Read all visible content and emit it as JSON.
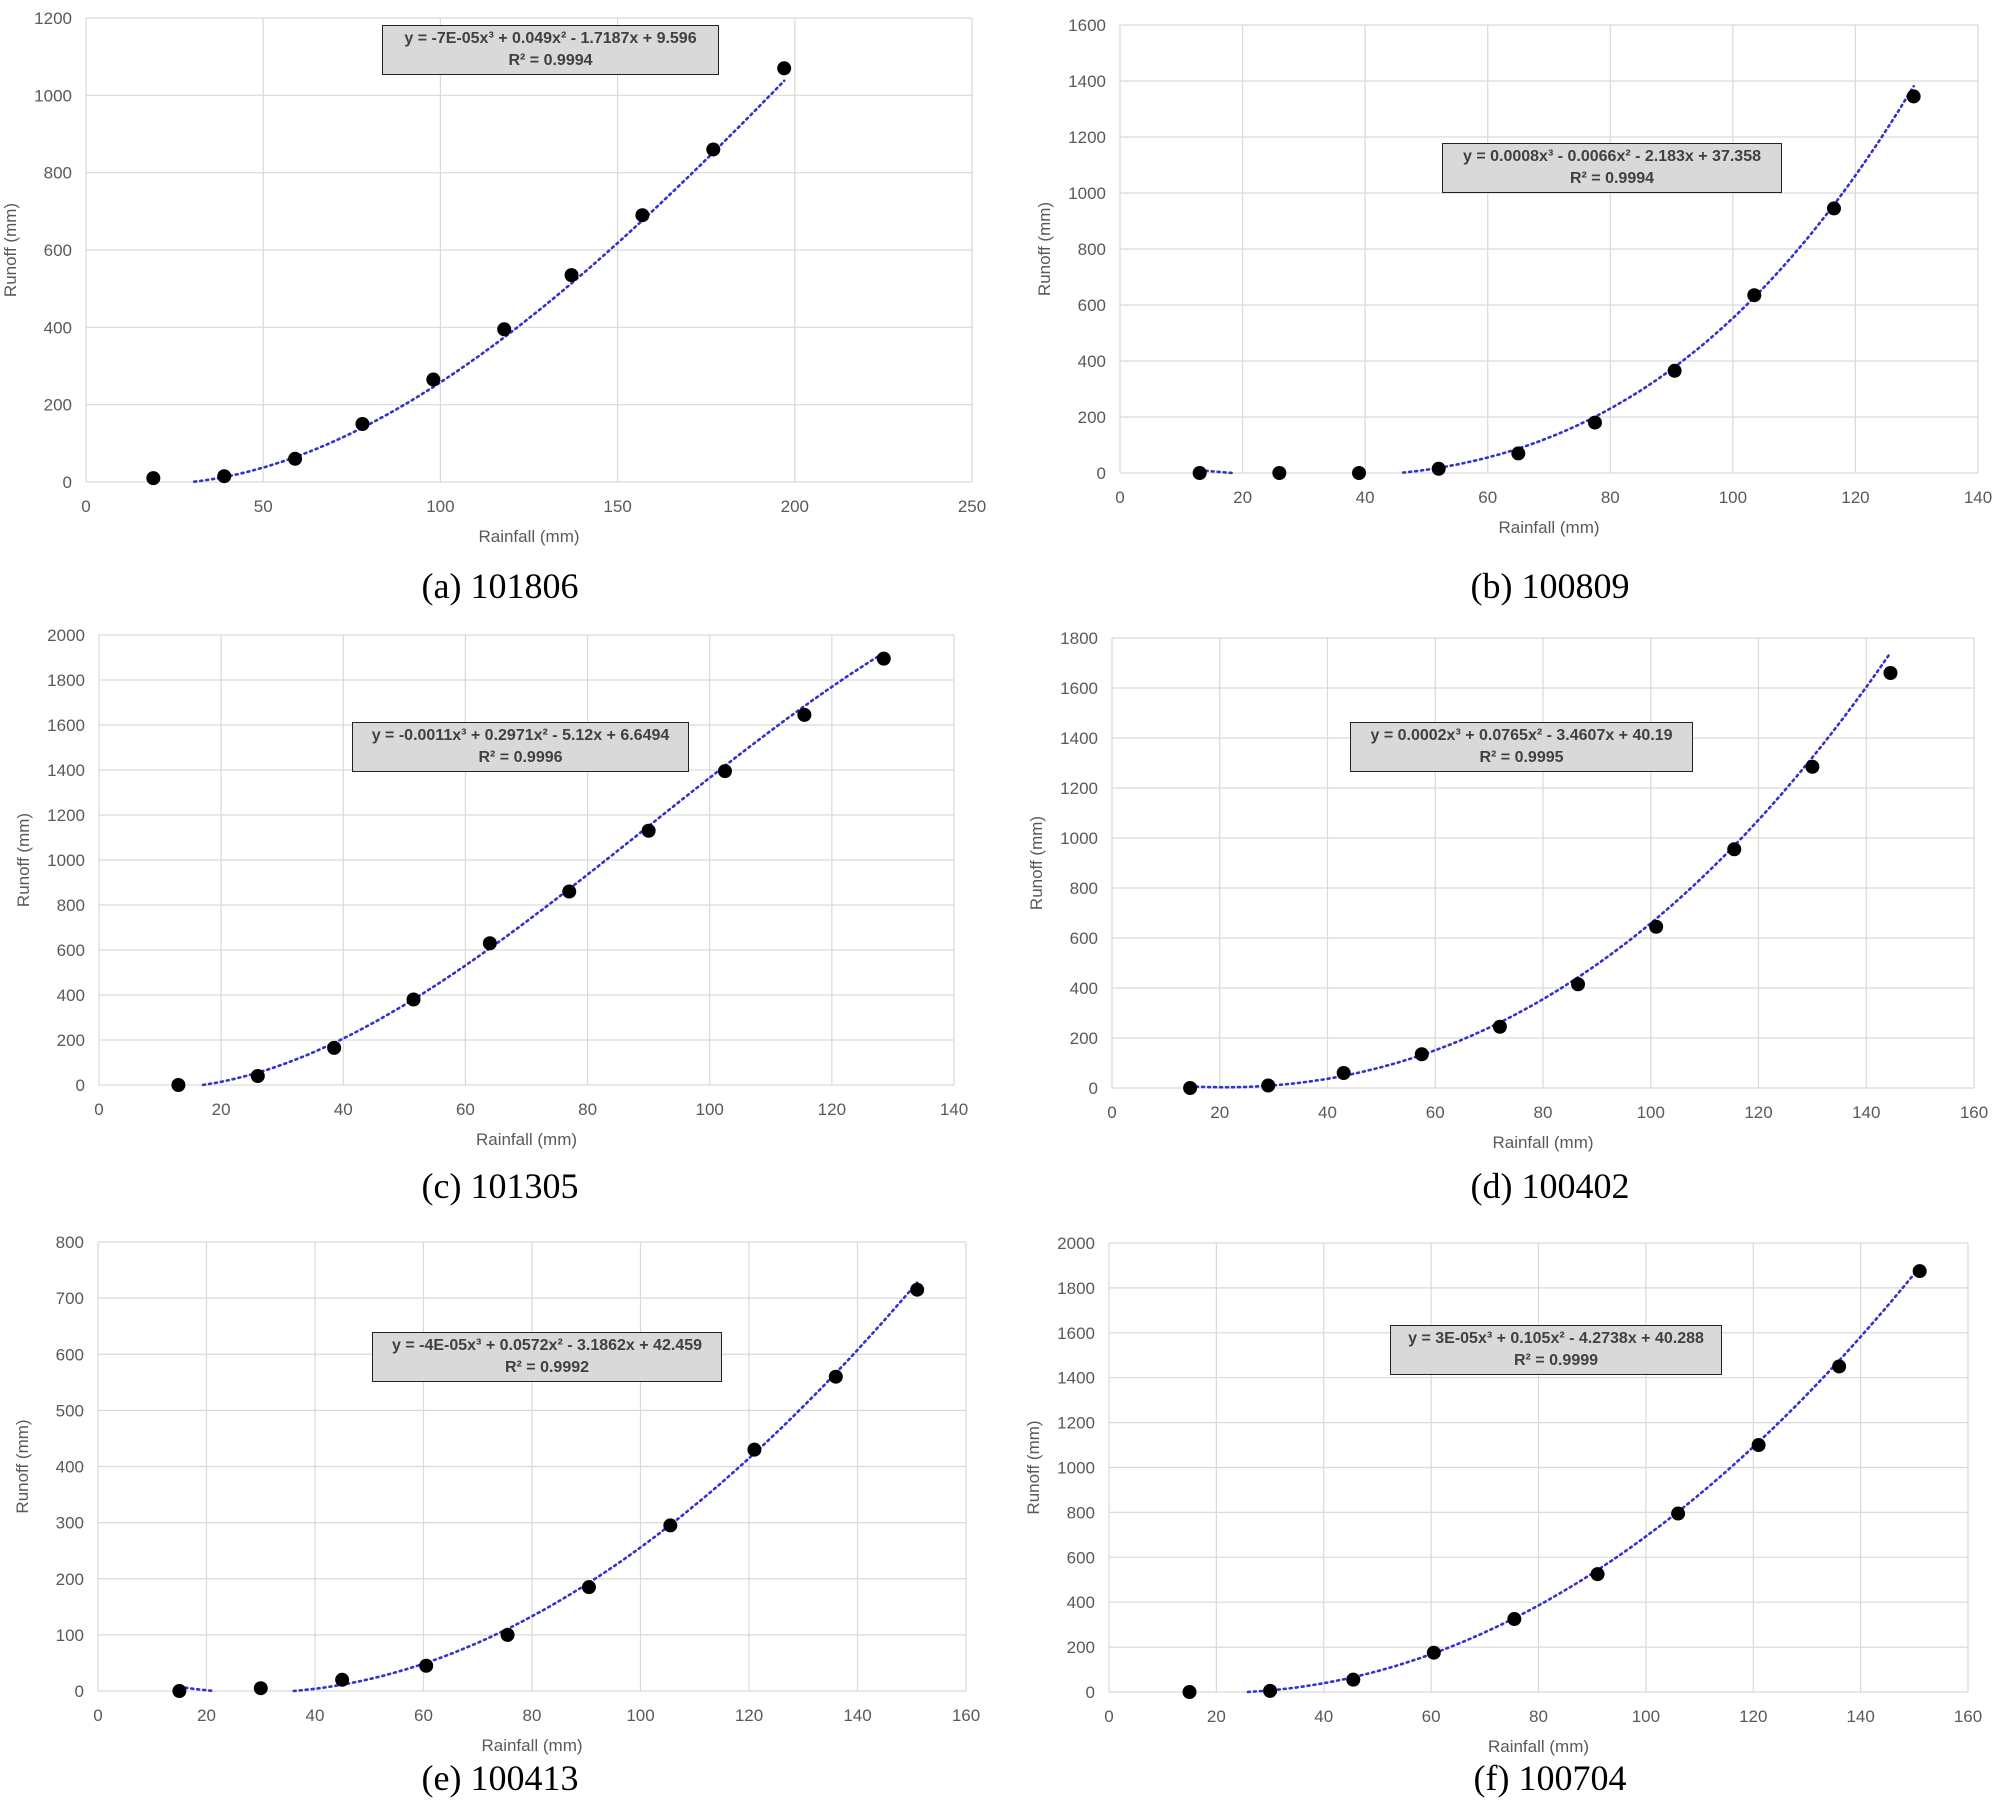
{
  "chart_data": [
    {
      "type": "scatter",
      "caption": "(a) 101806",
      "xlabel": "Rainfall (mm)",
      "ylabel": "Runoff (mm)",
      "xlim": [
        0,
        250
      ],
      "xstep": 50,
      "ylim": [
        0,
        1200
      ],
      "ystep": 200,
      "trendline": {
        "type": "polynomial",
        "order": 3,
        "coefficients": [
          -7e-05,
          0.049,
          -1.7187,
          9.596
        ],
        "color": "#3333cc"
      },
      "equation": "y = -7E-05x³ + 0.049x² - 1.7187x + 9.596",
      "r2": "R² = 0.9994",
      "x": [
        19,
        39,
        59,
        78,
        98,
        118,
        137,
        157,
        177,
        197
      ],
      "y": [
        10,
        15,
        60,
        150,
        265,
        395,
        535,
        690,
        860,
        1070
      ]
    },
    {
      "type": "scatter",
      "caption": "(b) 100809",
      "xlabel": "Rainfall (mm)",
      "ylabel": "Runoff (mm)",
      "xlim": [
        0,
        140
      ],
      "xstep": 20,
      "ylim": [
        0,
        1600
      ],
      "ystep": 200,
      "trendline": {
        "type": "polynomial",
        "order": 3,
        "coefficients": [
          0.0008,
          -0.0066,
          -2.183,
          37.358
        ],
        "color": "#3333cc"
      },
      "equation": "y = 0.0008x³ - 0.0066x² - 2.183x + 37.358",
      "r2": "R² = 0.9994",
      "x": [
        13,
        26,
        39,
        52,
        65,
        77.5,
        90.5,
        103.5,
        116.5,
        129.5
      ],
      "y": [
        0,
        0,
        0,
        15,
        70,
        180,
        365,
        635,
        945,
        1345
      ]
    },
    {
      "type": "scatter",
      "caption": "(c) 101305",
      "xlabel": "Rainfall (mm)",
      "ylabel": "Runoff (mm)",
      "xlim": [
        0,
        140
      ],
      "xstep": 20,
      "ylim": [
        0,
        2000
      ],
      "ystep": 200,
      "trendline": {
        "type": "polynomial",
        "order": 3,
        "coefficients": [
          -0.0011,
          0.2971,
          -5.12,
          6.6494
        ],
        "color": "#3333cc"
      },
      "equation": "y = -0.0011x³ + 0.2971x² - 5.12x + 6.6494",
      "r2": "R² = 0.9996",
      "x": [
        13,
        26,
        38.5,
        51.5,
        64,
        77,
        90,
        102.5,
        115.5,
        128.5
      ],
      "y": [
        0,
        40,
        165,
        380,
        630,
        860,
        1130,
        1395,
        1645,
        1895
      ]
    },
    {
      "type": "scatter",
      "caption": "(d) 100402",
      "xlabel": "Rainfall (mm)",
      "ylabel": "Runoff (mm)",
      "xlim": [
        0,
        160
      ],
      "xstep": 20,
      "ylim": [
        0,
        1800
      ],
      "ystep": 200,
      "trendline": {
        "type": "polynomial",
        "order": 3,
        "coefficients": [
          0.0002,
          0.0765,
          -3.4607,
          40.19
        ],
        "color": "#3333cc"
      },
      "equation": "y = 0.0002x³ + 0.0765x² - 3.4607x + 40.19",
      "r2": "R² = 0.9995",
      "x": [
        14.5,
        29,
        43,
        57.5,
        72,
        86.5,
        101,
        115.5,
        130,
        144.5
      ],
      "y": [
        0,
        10,
        60,
        135,
        245,
        415,
        645,
        955,
        1285,
        1660
      ]
    },
    {
      "type": "scatter",
      "caption": "(e) 100413",
      "xlabel": "Rainfall (mm)",
      "ylabel": "Runoff (mm)",
      "xlim": [
        0,
        160
      ],
      "xstep": 20,
      "ylim": [
        0,
        800
      ],
      "ystep": 100,
      "trendline": {
        "type": "polynomial",
        "order": 3,
        "coefficients": [
          -4e-05,
          0.0572,
          -3.1862,
          42.459
        ],
        "color": "#3333cc"
      },
      "equation": "y = -4E-05x³ + 0.0572x² - 3.1862x + 42.459",
      "r2": "R² = 0.9992",
      "x": [
        15,
        30,
        45,
        60.5,
        75.5,
        90.5,
        105.5,
        121,
        136,
        151
      ],
      "y": [
        0,
        5,
        20,
        45,
        100,
        185,
        295,
        430,
        560,
        715
      ]
    },
    {
      "type": "scatter",
      "caption": "(f) 100704",
      "xlabel": "Rainfall (mm)",
      "ylabel": "Runoff (mm)",
      "xlim": [
        0,
        160
      ],
      "xstep": 20,
      "ylim": [
        0,
        2000
      ],
      "ystep": 200,
      "trendline": {
        "type": "polynomial",
        "order": 3,
        "coefficients": [
          3e-05,
          0.105,
          -4.2738,
          40.288
        ],
        "color": "#3333cc"
      },
      "equation": "y = 3E-05x³ + 0.105x² - 4.2738x + 40.288",
      "r2": "R² = 0.9999",
      "x": [
        15,
        30,
        45.5,
        60.5,
        75.5,
        91,
        106,
        121,
        136,
        151
      ],
      "y": [
        0,
        5,
        55,
        175,
        325,
        525,
        795,
        1100,
        1450,
        1875
      ]
    }
  ]
}
